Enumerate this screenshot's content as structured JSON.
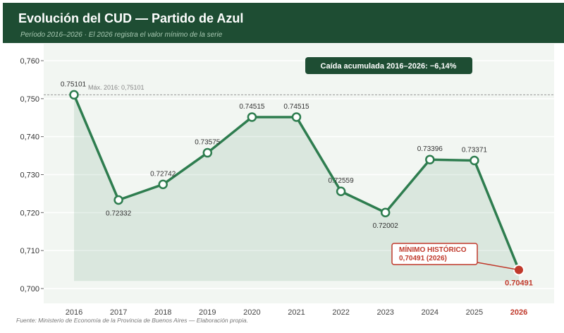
{
  "header": {
    "title": "Evolución del CUD — Partido de Azul",
    "subtitle": "Período 2016–2026  ·  El 2026 registra el valor mínimo de la serie"
  },
  "badge": "Caída acumulada 2016–2026: −6,14%",
  "max_label": "Máx. 2016: 0,75101",
  "min_callout": {
    "title": "MÍNIMO HISTÓRICO",
    "value": "0,70491 (2026)"
  },
  "source": "Fuente: Ministerio de Economía de la Provincia de Buenos Aires — Elaboración propia.",
  "colors": {
    "line": "#2e7d4f",
    "header": "#1e4d33",
    "min": "#c0392b"
  },
  "chart_data": {
    "type": "line",
    "title": "Evolución del CUD — Partido de Azul",
    "categories": [
      "2016",
      "2017",
      "2018",
      "2019",
      "2020",
      "2021",
      "2022",
      "2023",
      "2024",
      "2025",
      "2026"
    ],
    "values": [
      0.75101,
      0.72332,
      0.72742,
      0.73575,
      0.74515,
      0.74515,
      0.72559,
      0.72002,
      0.73396,
      0.73371,
      0.70491
    ],
    "data_labels": [
      "0.75101",
      "0.72332",
      "0.72742",
      "0.73575",
      "0.74515",
      "0.74515",
      "0.72559",
      "0.72002",
      "0.73396",
      "0.73371",
      "0.70491"
    ],
    "label_pos": [
      "above",
      "below",
      "above",
      "above",
      "above",
      "above",
      "above",
      "below",
      "above",
      "above",
      "below"
    ],
    "ylim": [
      0.696,
      0.764
    ],
    "yticks": [
      0.7,
      0.71,
      0.72,
      0.73,
      0.74,
      0.75,
      0.76
    ],
    "ytick_labels": [
      "0,700",
      "0,710",
      "0,720",
      "0,730",
      "0,740",
      "0,750",
      "0,760"
    ],
    "reference_line": 0.75101,
    "grid": true
  }
}
